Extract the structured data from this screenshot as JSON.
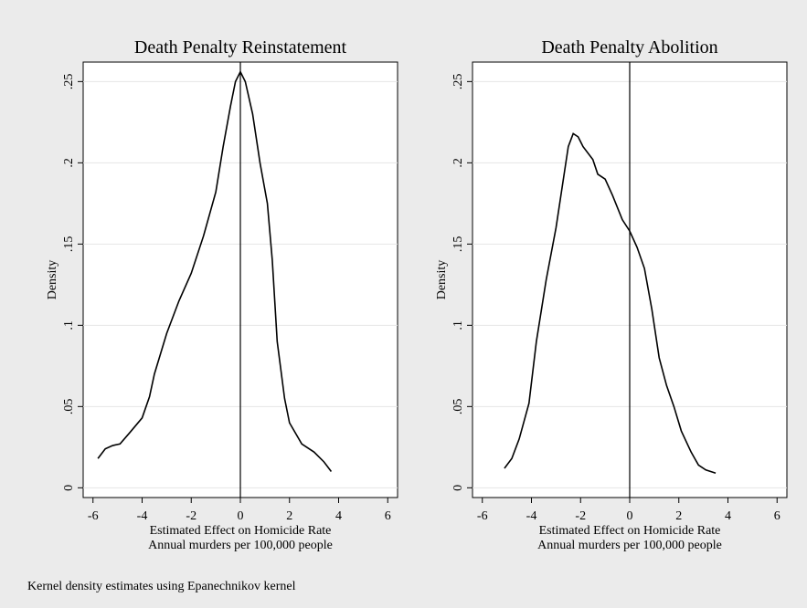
{
  "chart_data": [
    {
      "type": "line",
      "title": "Death Penalty Reinstatement",
      "xlabel": [
        "Estimated Effect on Homicide Rate",
        "Annual murders per 100,000 people"
      ],
      "ylabel": "Density",
      "x": [
        -5.8,
        -5.5,
        -5.2,
        -4.9,
        -4.5,
        -4.0,
        -3.7,
        -3.5,
        -3.0,
        -2.5,
        -2.0,
        -1.5,
        -1.0,
        -0.7,
        -0.4,
        -0.2,
        0,
        0.2,
        0.5,
        0.8,
        1.1,
        1.3,
        1.5,
        1.8,
        2.0,
        2.5,
        3.0,
        3.4,
        3.7
      ],
      "series": [
        {
          "color": "#000000",
          "values": [
            0.018,
            0.024,
            0.026,
            0.027,
            0.034,
            0.043,
            0.056,
            0.07,
            0.095,
            0.115,
            0.132,
            0.155,
            0.182,
            0.21,
            0.235,
            0.25,
            0.256,
            0.25,
            0.23,
            0.2,
            0.175,
            0.14,
            0.09,
            0.055,
            0.04,
            0.027,
            0.022,
            0.016,
            0.01
          ]
        }
      ],
      "xline": 0,
      "xlim": [
        -6.4,
        6.4
      ],
      "xticks": [
        -6,
        -4,
        -2,
        0,
        2,
        4,
        6
      ],
      "ylim": [
        -0.006,
        0.262
      ],
      "yticks": [
        {
          "value": 0,
          "label": "0"
        },
        {
          "value": 0.05,
          "label": ".05"
        },
        {
          "value": 0.1,
          "label": ".1"
        },
        {
          "value": 0.15,
          "label": ".15"
        },
        {
          "value": 0.2,
          "label": ".2"
        },
        {
          "value": 0.25,
          "label": ".25"
        }
      ],
      "grid": true
    },
    {
      "type": "line",
      "title": "Death Penalty Abolition",
      "xlabel": [
        "Estimated Effect on Homicide Rate",
        "Annual murders per 100,000 people"
      ],
      "ylabel": "Density",
      "x": [
        -5.1,
        -4.8,
        -4.5,
        -4.1,
        -3.8,
        -3.4,
        -3.0,
        -2.7,
        -2.5,
        -2.3,
        -2.1,
        -1.9,
        -1.5,
        -1.3,
        -1.0,
        -0.7,
        -0.3,
        0,
        0.3,
        0.6,
        0.9,
        1.2,
        1.5,
        1.8,
        2.1,
        2.5,
        2.8,
        3.1,
        3.5
      ],
      "series": [
        {
          "color": "#000000",
          "values": [
            0.012,
            0.018,
            0.03,
            0.052,
            0.09,
            0.128,
            0.16,
            0.19,
            0.21,
            0.218,
            0.216,
            0.21,
            0.202,
            0.193,
            0.19,
            0.18,
            0.165,
            0.158,
            0.148,
            0.135,
            0.11,
            0.08,
            0.063,
            0.05,
            0.035,
            0.022,
            0.014,
            0.011,
            0.009
          ]
        }
      ],
      "xline": 0,
      "xlim": [
        -6.4,
        6.4
      ],
      "xticks": [
        -6,
        -4,
        -2,
        0,
        2,
        4,
        6
      ],
      "ylim": [
        -0.006,
        0.262
      ],
      "yticks": [
        {
          "value": 0,
          "label": "0"
        },
        {
          "value": 0.05,
          "label": ".05"
        },
        {
          "value": 0.1,
          "label": ".1"
        },
        {
          "value": 0.15,
          "label": ".15"
        },
        {
          "value": 0.2,
          "label": ".2"
        },
        {
          "value": 0.25,
          "label": ".25"
        }
      ],
      "grid": true
    }
  ],
  "note": "Kernel density estimates using Epanechnikov kernel"
}
